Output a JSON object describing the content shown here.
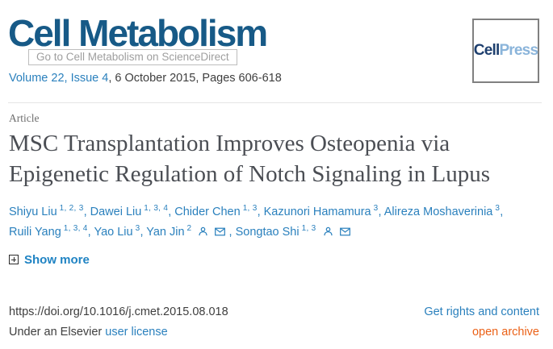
{
  "journal": {
    "name": "Cell Metabolism",
    "tooltip": "Go to Cell Metabolism on ScienceDirect",
    "issue_link": "Volume 22, Issue 4",
    "issue_rest": ", 6 October 2015, Pages 606-618",
    "publisher_logo": {
      "part1": "Cell",
      "part2": "Press"
    }
  },
  "article": {
    "type_label": "Article",
    "title": "MSC Transplantation Improves Osteopenia via Epigenetic Regulation of Notch Signaling in Lupus",
    "show_more_label": "Show more",
    "show_more_icon": "plus-box-icon"
  },
  "authors": [
    {
      "name": "Shiyu Liu",
      "sup": "1, 2, 3"
    },
    {
      "name": "Dawei Liu",
      "sup": "1, 3, 4"
    },
    {
      "name": "Chider Chen",
      "sup": "1, 3"
    },
    {
      "name": "Kazunori Hamamura",
      "sup": "3"
    },
    {
      "name": "Alireza Moshaverinia",
      "sup": "3"
    },
    {
      "name": "Ruili Yang",
      "sup": "1, 3, 4"
    },
    {
      "name": "Yao Liu",
      "sup": "3"
    },
    {
      "name": "Yan Jin",
      "sup": "2",
      "icons": [
        "person-icon",
        "envelope-icon"
      ]
    },
    {
      "name": "Songtao Shi",
      "sup": "1, 3",
      "icons": [
        "person-icon",
        "envelope-icon"
      ]
    }
  ],
  "footer": {
    "doi": "https://doi.org/10.1016/j.cmet.2015.08.018",
    "rights_link": "Get rights and content",
    "license_prefix": "Under an Elsevier ",
    "license_link": "user license",
    "archive_link": "open archive"
  },
  "colors": {
    "brand_navy": "#175a87",
    "cellpress_dark": "#1e3f6e",
    "cellpress_light": "#8ab4da",
    "link_blue": "#2a80bd",
    "accent_orange": "#eb6117",
    "text_dark": "#3e3e3e",
    "title_gray": "#4b4e54"
  }
}
